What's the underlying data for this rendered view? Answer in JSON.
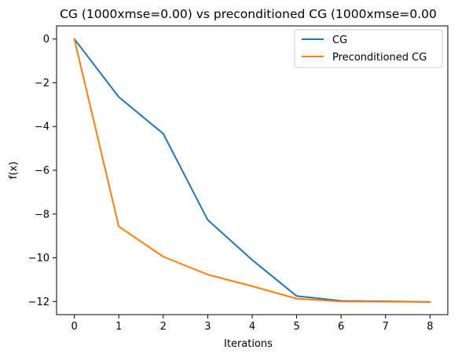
{
  "chart_data": {
    "type": "line",
    "title": "CG (1000xmse=0.00) vs preconditioned CG (1000xmse=0.00",
    "xlabel": "Iterations",
    "ylabel": "f(x)",
    "xlim": [
      -0.4,
      8.4
    ],
    "ylim": [
      -12.6,
      0.6
    ],
    "x_ticks": [
      0,
      1,
      2,
      3,
      4,
      5,
      6,
      7,
      8
    ],
    "y_ticks": [
      0,
      -2,
      -4,
      -6,
      -8,
      -10,
      -12
    ],
    "x_tick_labels": [
      "0",
      "1",
      "2",
      "3",
      "4",
      "5",
      "6",
      "7",
      "8"
    ],
    "y_tick_labels": [
      "0",
      "−2",
      "−4",
      "−6",
      "−8",
      "−10",
      "−12"
    ],
    "grid": false,
    "legend_position": "top-right",
    "series": [
      {
        "name": "CG",
        "color": "#1f77b4",
        "x": [
          0,
          1,
          2,
          3,
          4,
          5,
          6,
          7,
          8
        ],
        "y": [
          0,
          -2.65,
          -4.33,
          -8.27,
          -10.1,
          -11.75,
          -11.97,
          -11.99,
          -12.02
        ]
      },
      {
        "name": "Preconditioned CG",
        "color": "#ff7f0e",
        "x": [
          0,
          1,
          2,
          3,
          4,
          5,
          6,
          7,
          8
        ],
        "y": [
          0,
          -8.57,
          -9.95,
          -10.77,
          -11.3,
          -11.87,
          -12.0,
          -12.01,
          -12.02
        ]
      }
    ]
  }
}
